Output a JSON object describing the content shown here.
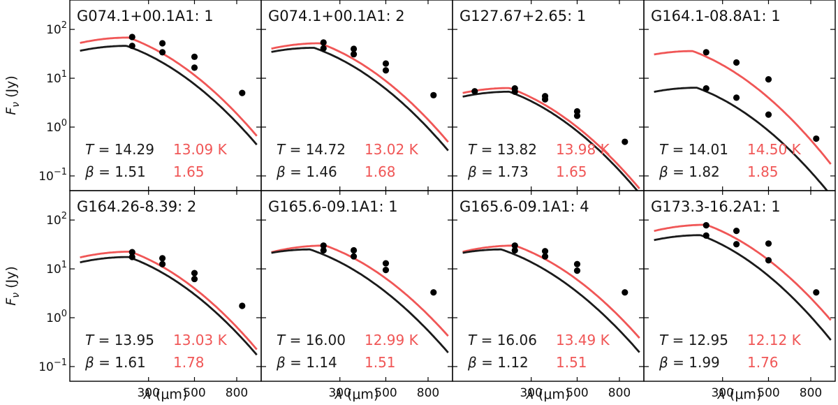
{
  "chart_data": {
    "type": "line",
    "figure": "Multi-panel SED fits",
    "xlabel_latex": "λ (μm)",
    "xlabel": {
      "symbol": "λ",
      "unit": "(μm)"
    },
    "ylabel": {
      "symbol": "F",
      "subscript": "ν",
      "unit": "(Jy)"
    },
    "x_ticks": [
      300,
      500,
      800
    ],
    "x_tick_labels": [
      "300",
      "500",
      "800"
    ],
    "xlim": [
      125,
      1050
    ],
    "ylim": [
      0.05,
      400
    ],
    "y_ticks": [
      {
        "base": "10",
        "exp": "2"
      },
      {
        "base": "10",
        "exp": "1"
      },
      {
        "base": "10",
        "exp": "0"
      },
      {
        "base": "10",
        "exp": "−1"
      }
    ],
    "y_tick_values": [
      100,
      10,
      1,
      0.1
    ],
    "x_scale": "log",
    "y_scale": "log",
    "colors": {
      "black_series": "#1a1a1a",
      "red_series": "#f05656"
    },
    "t_symbol": "T",
    "beta_symbol": "β",
    "equals": " = ",
    "t_unit": "K",
    "panels": [
      {
        "title": "G074.1+00.1A1: 1",
        "T_black": "14.29",
        "T_red": "13.09",
        "beta_black": "1.51",
        "beta_red": "1.65",
        "black_points": [
          [
            250,
            46
          ],
          [
            350,
            34
          ],
          [
            500,
            16.5
          ],
          [
            850,
            5.0
          ]
        ],
        "red_points": [
          [
            250,
            70
          ],
          [
            350,
            52
          ],
          [
            500,
            27.5
          ]
        ],
        "black_curve": {
          "peak": 46,
          "peak_lambda": 235,
          "beta": 1.51
        },
        "red_curve": {
          "peak": 68,
          "peak_lambda": 240,
          "beta": 1.65
        }
      },
      {
        "title": "G074.1+00.1A1: 2",
        "T_black": "14.72",
        "T_red": "13.02",
        "beta_black": "1.46",
        "beta_red": "1.68",
        "black_points": [
          [
            250,
            41
          ],
          [
            350,
            31
          ],
          [
            500,
            14.5
          ],
          [
            850,
            4.5
          ]
        ],
        "red_points": [
          [
            250,
            54
          ],
          [
            350,
            40
          ],
          [
            500,
            20
          ]
        ],
        "black_curve": {
          "peak": 42,
          "peak_lambda": 225,
          "beta": 1.46
        },
        "red_curve": {
          "peak": 52,
          "peak_lambda": 240,
          "beta": 1.68
        }
      },
      {
        "title": "G127.67+2.65: 1",
        "T_black": "13.82",
        "T_red": "13.98",
        "beta_black": "1.73",
        "beta_red": "1.65",
        "black_points": [
          [
            160,
            5.4
          ],
          [
            250,
            5.3
          ],
          [
            350,
            3.7
          ],
          [
            500,
            1.7
          ],
          [
            850,
            0.5
          ]
        ],
        "red_points": [
          [
            250,
            6.2
          ],
          [
            350,
            4.3
          ],
          [
            500,
            2.1
          ]
        ],
        "black_curve": {
          "peak": 5.3,
          "peak_lambda": 235,
          "beta": 1.73
        },
        "red_curve": {
          "peak": 6.3,
          "peak_lambda": 235,
          "beta": 1.65
        }
      },
      {
        "title": "G164.1-08.8A1: 1",
        "T_black": "14.01",
        "T_red": "14.50",
        "beta_black": "1.82",
        "beta_red": "1.85",
        "black_points": [
          [
            250,
            6.2
          ],
          [
            350,
            4.0
          ],
          [
            500,
            1.8
          ],
          [
            850,
            0.58
          ]
        ],
        "red_points": [
          [
            250,
            34
          ],
          [
            350,
            21
          ],
          [
            500,
            9.5
          ]
        ],
        "black_curve": {
          "peak": 6.4,
          "peak_lambda": 225,
          "beta": 1.82
        },
        "red_curve": {
          "peak": 36,
          "peak_lambda": 215,
          "beta": 1.85
        }
      },
      {
        "title": "G164.26-8.39: 2",
        "T_black": "13.95",
        "T_red": "13.03",
        "beta_black": "1.61",
        "beta_red": "1.78",
        "black_points": [
          [
            250,
            17.5
          ],
          [
            350,
            12.5
          ],
          [
            500,
            6.2
          ],
          [
            850,
            1.75
          ]
        ],
        "red_points": [
          [
            250,
            22
          ],
          [
            350,
            16.5
          ],
          [
            500,
            8.2
          ]
        ],
        "black_curve": {
          "peak": 17.5,
          "peak_lambda": 240,
          "beta": 1.61
        },
        "red_curve": {
          "peak": 22.5,
          "peak_lambda": 245,
          "beta": 1.78
        }
      },
      {
        "title": "G165.6-09.1A1: 1",
        "T_black": "16.00",
        "T_red": "12.99",
        "beta_black": "1.14",
        "beta_red": "1.51",
        "black_points": [
          [
            250,
            24
          ],
          [
            350,
            18
          ],
          [
            500,
            9.5
          ],
          [
            850,
            3.3
          ]
        ],
        "red_points": [
          [
            250,
            30
          ],
          [
            350,
            24
          ],
          [
            500,
            13
          ]
        ],
        "black_curve": {
          "peak": 25,
          "peak_lambda": 215,
          "beta": 1.14
        },
        "red_curve": {
          "peak": 30,
          "peak_lambda": 255,
          "beta": 1.51
        }
      },
      {
        "title": "G165.6-09.1A1: 4",
        "T_black": "16.06",
        "T_red": "13.49",
        "beta_black": "1.12",
        "beta_red": "1.51",
        "black_points": [
          [
            250,
            24
          ],
          [
            350,
            18
          ],
          [
            500,
            9.2
          ],
          [
            850,
            3.3
          ]
        ],
        "red_points": [
          [
            250,
            30
          ],
          [
            350,
            23
          ],
          [
            500,
            12.5
          ]
        ],
        "black_curve": {
          "peak": 25,
          "peak_lambda": 215,
          "beta": 1.12
        },
        "red_curve": {
          "peak": 30,
          "peak_lambda": 250,
          "beta": 1.51
        }
      },
      {
        "title": "G173.3-16.2A1: 1",
        "T_black": "12.95",
        "T_red": "12.12",
        "beta_black": "1.99",
        "beta_red": "1.76",
        "black_points": [
          [
            250,
            48
          ],
          [
            350,
            32
          ],
          [
            500,
            15
          ],
          [
            850,
            3.3
          ]
        ],
        "red_points": [
          [
            250,
            78
          ],
          [
            350,
            60
          ],
          [
            500,
            33
          ]
        ],
        "black_curve": {
          "peak": 49,
          "peak_lambda": 235,
          "beta": 1.99
        },
        "red_curve": {
          "peak": 80,
          "peak_lambda": 250,
          "beta": 1.76
        }
      }
    ]
  }
}
